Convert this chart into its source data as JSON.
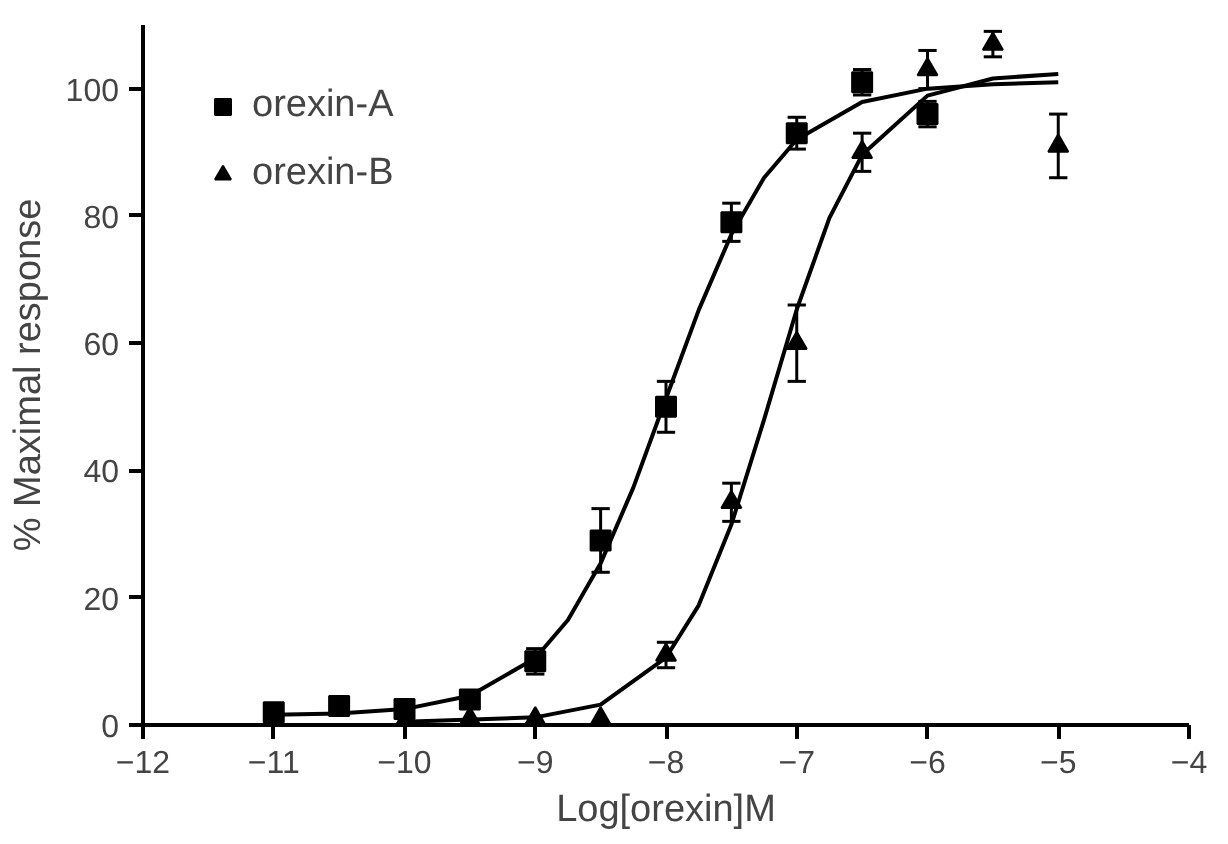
{
  "chart_data": {
    "type": "scatter",
    "xlabel": "Log[orexin]M",
    "ylabel": "% Maximal response",
    "xlim": [
      -12,
      -4
    ],
    "xticks": [
      -12,
      -11,
      -10,
      -9,
      -8,
      -7,
      -6,
      -5,
      -4
    ],
    "ylim": [
      0,
      110
    ],
    "yticks": [
      0,
      20,
      40,
      60,
      80,
      100
    ],
    "grid": false,
    "legend": "top left",
    "series": [
      {
        "name": "orexin-A",
        "color": "#000000",
        "marker": "square",
        "x": [
          -11,
          -10.5,
          -10,
          -9.5,
          -9,
          -8.5,
          -8,
          -7.5,
          -7,
          -6.5,
          -6
        ],
        "values": [
          2,
          3,
          2.5,
          4,
          10,
          29,
          50,
          79,
          93,
          101,
          96
        ],
        "errors": [
          null,
          null,
          null,
          null,
          2,
          5,
          4,
          3,
          2.5,
          2,
          2
        ]
      },
      {
        "name": "orexin-B",
        "color": "#000000",
        "marker": "triangle",
        "x": [
          -10,
          -9.5,
          -9,
          -8.5,
          -8,
          -7.5,
          -7,
          -6.5,
          -6,
          -5.5,
          -5
        ],
        "values": [
          0.5,
          1,
          1,
          1,
          11,
          35,
          60,
          90,
          103,
          107,
          91
        ],
        "errors": [
          null,
          null,
          null,
          null,
          2,
          3,
          6,
          3,
          3,
          2,
          5
        ]
      },
      {
        "type": "line",
        "color": "#000000",
        "x": [
          -11,
          -10.5,
          -10,
          -9.5,
          -9,
          -8.75,
          -8.5,
          -8.25,
          -8,
          -7.75,
          -7.5,
          -7.25,
          -7,
          -6.5,
          -6,
          -5.5,
          -5
        ],
        "values": [
          1.6,
          1.8,
          2.5,
          4.6,
          10.5,
          16.5,
          25.4,
          37.3,
          51.3,
          65.2,
          77.1,
          86,
          92,
          97.9,
          100,
          100.7,
          101
        ]
      },
      {
        "type": "line",
        "color": "#000000",
        "x": [
          -10,
          -9,
          -8.5,
          -8,
          -7.75,
          -7.5,
          -7.25,
          -7,
          -6.75,
          -6.5,
          -6,
          -5.5,
          -5
        ],
        "values": [
          0.5,
          1.2,
          3.2,
          10.6,
          18.8,
          31.5,
          48,
          65.3,
          79.7,
          89.6,
          98.9,
          101.6,
          102.3
        ]
      }
    ]
  }
}
